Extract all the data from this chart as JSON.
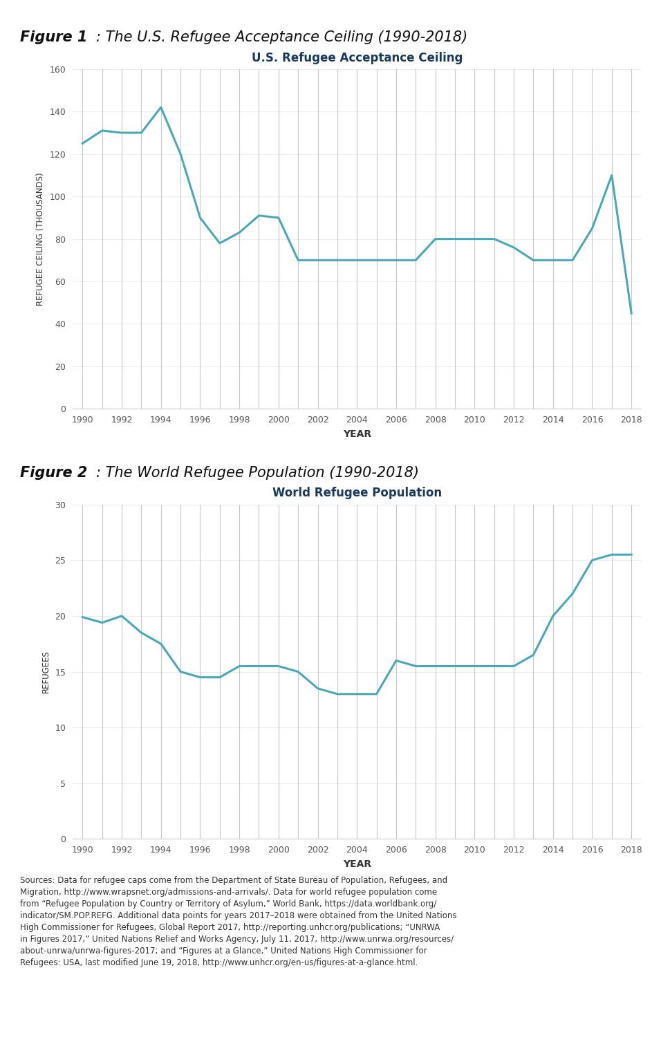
{
  "fig1_title": "U.S. Refugee Acceptance Ceiling",
  "fig1_xlabel": "YEAR",
  "fig1_ylabel": "REFUGEE CEILING (THOUSANDS)",
  "fig1_years": [
    1990,
    1991,
    1992,
    1993,
    1994,
    1995,
    1996,
    1997,
    1998,
    1999,
    2000,
    2001,
    2002,
    2003,
    2004,
    2005,
    2006,
    2007,
    2008,
    2009,
    2010,
    2011,
    2012,
    2013,
    2014,
    2015,
    2016,
    2017,
    2018
  ],
  "fig1_values": [
    125,
    131,
    130,
    130,
    142,
    120,
    90,
    78,
    83,
    91,
    90,
    70,
    70,
    70,
    70,
    70,
    70,
    70,
    80,
    80,
    80,
    80,
    76,
    70,
    70,
    70,
    85,
    110,
    45
  ],
  "fig1_ylim": [
    0,
    160
  ],
  "fig1_yticks": [
    0,
    20,
    40,
    60,
    80,
    100,
    120,
    140,
    160
  ],
  "fig2_title": "World Refugee Population",
  "fig2_xlabel": "YEAR",
  "fig2_ylabel": "REFUGEES",
  "fig2_years": [
    1990,
    1991,
    1992,
    1993,
    1994,
    1995,
    1996,
    1997,
    1998,
    1999,
    2000,
    2001,
    2002,
    2003,
    2004,
    2005,
    2006,
    2007,
    2008,
    2009,
    2010,
    2011,
    2012,
    2013,
    2014,
    2015,
    2016,
    2017,
    2018
  ],
  "fig2_values": [
    19.9,
    19.4,
    20.0,
    18.5,
    17.5,
    15.0,
    14.5,
    14.5,
    15.5,
    15.5,
    15.5,
    15.0,
    13.5,
    13.0,
    13.0,
    13.0,
    16.0,
    15.5,
    15.5,
    15.5,
    15.5,
    15.5,
    15.5,
    16.5,
    20.0,
    22.0,
    25.0,
    25.5,
    25.5
  ],
  "fig2_ylim": [
    0,
    30
  ],
  "fig2_yticks": [
    0,
    5,
    10,
    15,
    20,
    25,
    30
  ],
  "line_color": "#4aa8b8",
  "line_width": 2.2,
  "vline_color": "#c8c8c8",
  "xtick_years": [
    1990,
    1992,
    1994,
    1996,
    1998,
    2000,
    2002,
    2004,
    2006,
    2008,
    2010,
    2012,
    2014,
    2016,
    2018
  ],
  "figure1_bold": "Figure 1",
  "figure1_italic": ": The U.S. Refugee Acceptance Ceiling (1990-2018)",
  "figure2_bold": "Figure 2",
  "figure2_italic": ": The World Refugee Population (1990-2018)",
  "sources_text": "Sources: Data for refugee caps come from the Department of State Bureau of Population, Refugees, and\nMigration, http://www.wrapsnet.org/admissions-and-arrivals/. Data for world refugee population come\nfrom “Refugee Population by Country or Territory of Asylum,” World Bank, https://data.worldbank.org/\nindicator/SM.POP.REFG. Additional data points for years 2017–2018 were obtained from the United Nations\nHigh Commissioner for Refugees, Global Report 2017, http://reporting.unhcr.org/publications; “UNRWA\nin Figures 2017,” United Nations Relief and Works Agency, July 11, 2017, http://www.unrwa.org/resources/\nabout-unrwa/unrwa-figures-2017; and “Figures at a Glance,” United Nations High Commissioner for\nRefugees: USA, last modified June 19, 2018, http://www.unhcr.org/en-us/figures-at-a-glance.html.",
  "bg_color": "#ffffff",
  "tick_label_color": "#555555",
  "axis_label_color": "#333333",
  "title_chart_color": "#1a3a5c",
  "fig_label_color": "#111111",
  "sources_color": "#333333"
}
